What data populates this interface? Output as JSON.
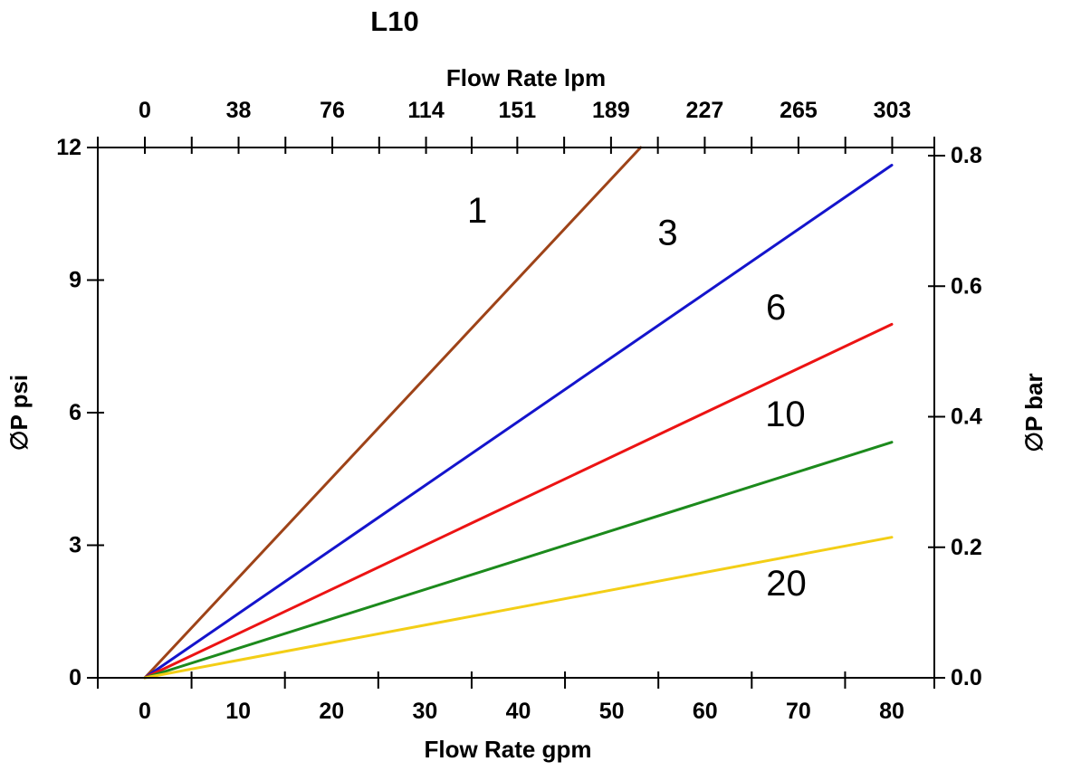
{
  "chart_data": {
    "type": "line",
    "title": "L10",
    "axes": {
      "top": {
        "label": "Flow Rate lpm",
        "ticks": [
          0,
          38,
          76,
          114,
          151,
          189,
          227,
          265,
          303
        ],
        "unit": "lpm"
      },
      "bottom": {
        "label": "Flow Rate gpm",
        "ticks": [
          0,
          10,
          20,
          30,
          40,
          50,
          60,
          70,
          80
        ],
        "unit": "gpm"
      },
      "left": {
        "label": "∅P psi",
        "ticks": [
          0,
          3,
          6,
          9,
          12
        ],
        "unit": "psi"
      },
      "right": {
        "label": "∅P bar",
        "ticks": [
          "0.0",
          "0.2",
          "0.4",
          "0.6",
          "0.8"
        ],
        "unit": "bar"
      }
    },
    "xlim_gpm": [
      0,
      80
    ],
    "ylim_psi": [
      0,
      12
    ],
    "lpm_per_gpm": 3.78541,
    "legend_position": "inline-labels",
    "grid": false,
    "series": [
      {
        "label": "1",
        "color": "#9E4318",
        "points_gpm_psi": [
          [
            0,
            0
          ],
          [
            53.1,
            12.0
          ]
        ],
        "label_at_gpm_psi": [
          35.6,
          10.57
        ]
      },
      {
        "label": "3",
        "color": "#1414CC",
        "points_gpm_psi": [
          [
            0,
            0
          ],
          [
            80,
            11.6
          ]
        ],
        "label_at_gpm_psi": [
          56.0,
          10.06
        ]
      },
      {
        "label": "6",
        "color": "#EC1313",
        "points_gpm_psi": [
          [
            0,
            0
          ],
          [
            80,
            8.0
          ]
        ],
        "label_at_gpm_psi": [
          67.6,
          8.38
        ]
      },
      {
        "label": "10",
        "color": "#1C8A1C",
        "points_gpm_psi": [
          [
            0,
            0
          ],
          [
            80,
            5.33
          ]
        ],
        "label_at_gpm_psi": [
          68.6,
          5.96
        ]
      },
      {
        "label": "20",
        "color": "#F3CE16",
        "points_gpm_psi": [
          [
            0,
            0
          ],
          [
            80,
            3.18
          ]
        ],
        "label_at_gpm_psi": [
          68.7,
          2.13
        ]
      }
    ]
  }
}
